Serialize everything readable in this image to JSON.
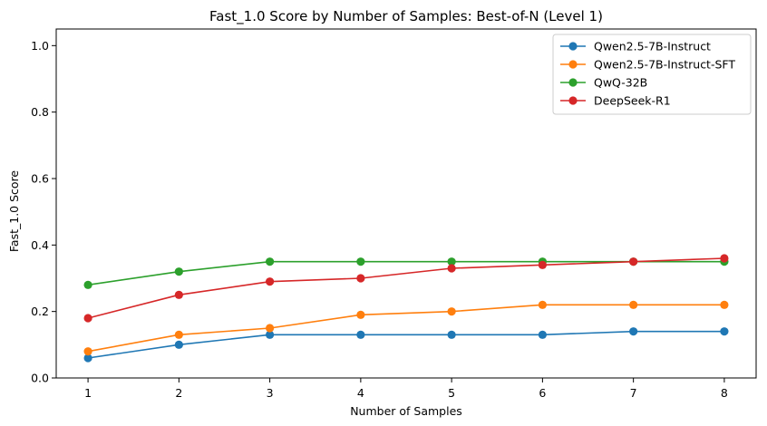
{
  "chart_data": {
    "type": "line",
    "title": "Fast_1.0 Score by Number of Samples: Best-of-N (Level 1)",
    "xlabel": "Number of Samples",
    "ylabel": "Fast_1.0 Score",
    "x": [
      1,
      2,
      3,
      4,
      5,
      6,
      7,
      8
    ],
    "xlim": [
      0.65,
      8.35
    ],
    "ylim": [
      0,
      1.05
    ],
    "xticks": [
      1,
      2,
      3,
      4,
      5,
      6,
      7,
      8
    ],
    "yticks": [
      0.0,
      0.2,
      0.4,
      0.6,
      0.8,
      1.0
    ],
    "grid": false,
    "legend_position": "top-right",
    "series": [
      {
        "name": "Qwen2.5-7B-Instruct",
        "color": "#1f77b4",
        "values": [
          0.06,
          0.1,
          0.13,
          0.13,
          0.13,
          0.13,
          0.14,
          0.14
        ]
      },
      {
        "name": "Qwen2.5-7B-Instruct-SFT",
        "color": "#ff7f0e",
        "values": [
          0.08,
          0.13,
          0.15,
          0.19,
          0.2,
          0.22,
          0.22,
          0.22
        ]
      },
      {
        "name": "QwQ-32B",
        "color": "#2ca02c",
        "values": [
          0.28,
          0.32,
          0.35,
          0.35,
          0.35,
          0.35,
          0.35,
          0.35
        ]
      },
      {
        "name": "DeepSeek-R1",
        "color": "#d62728",
        "values": [
          0.18,
          0.25,
          0.29,
          0.3,
          0.33,
          0.34,
          0.35,
          0.36
        ]
      }
    ]
  }
}
